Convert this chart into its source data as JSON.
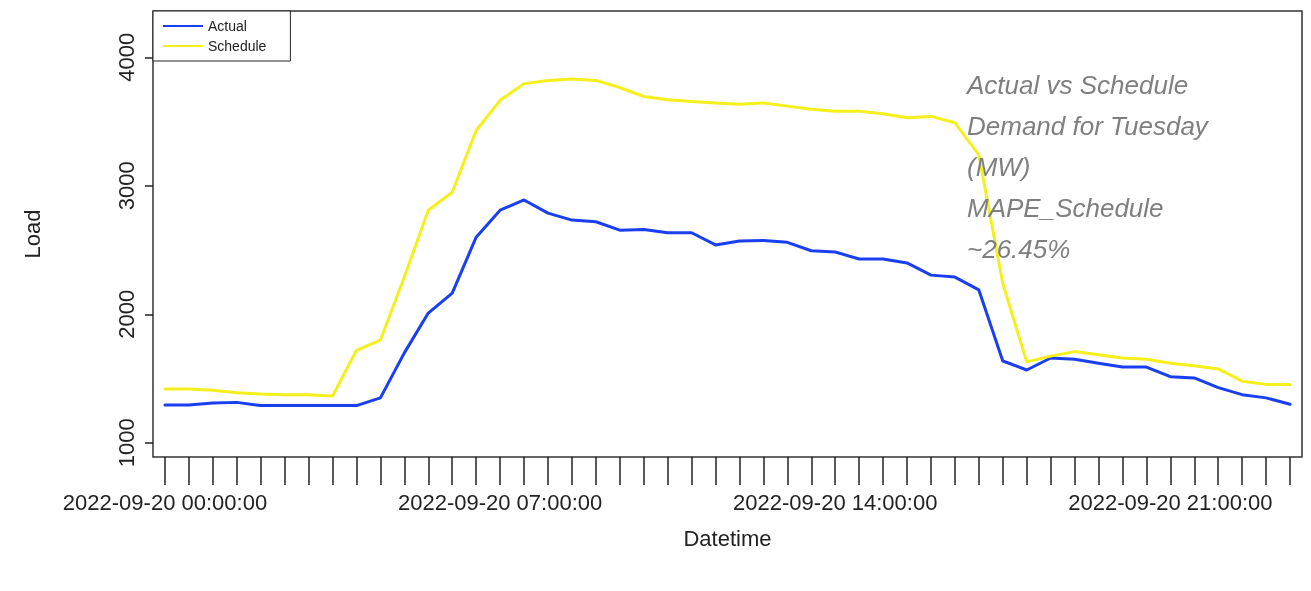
{
  "chart_data": {
    "type": "line",
    "xlabel": "Datetime",
    "ylabel": "Load",
    "annotations": [
      "Actual vs Schedule\nDemand for Tuesday\n(MW)\nMAPE_Schedule\n~26.45%"
    ],
    "categories": [
      "2022-09-20 00:00:00",
      null,
      null,
      null,
      null,
      null,
      null,
      null,
      null,
      null,
      null,
      null,
      null,
      null,
      "2022-09-20 07:00:00",
      null,
      null,
      null,
      null,
      null,
      null,
      null,
      null,
      null,
      null,
      null,
      null,
      null,
      "2022-09-20 14:00:00",
      null,
      null,
      null,
      null,
      null,
      null,
      null,
      null,
      null,
      null,
      null,
      null,
      null,
      "2022-09-20 21:00:00",
      null,
      null,
      null,
      null,
      null
    ],
    "series": [
      {
        "name": "Actual",
        "color": "#1a3ff0",
        "values": [
          1295,
          1295,
          1310,
          1315,
          1290,
          1290,
          1290,
          1290,
          1290,
          1350,
          1700,
          2010,
          2165,
          2600,
          2810,
          2890,
          2787,
          2733,
          2720,
          2655,
          2660,
          2635,
          2635,
          2540,
          2570,
          2575,
          2560,
          2495,
          2485,
          2430,
          2430,
          2400,
          2305,
          2290,
          2190,
          1637,
          1567,
          1660,
          1650,
          1620,
          1590,
          1590,
          1515,
          1505,
          1430,
          1375,
          1350,
          1300
        ]
      },
      {
        "name": "Schedule",
        "color": "#f5f01c",
        "values": [
          1420,
          1420,
          1410,
          1390,
          1380,
          1375,
          1375,
          1365,
          1720,
          1800,
          2290,
          2810,
          2950,
          3430,
          3665,
          3795,
          3820,
          3830,
          3820,
          3765,
          3695,
          3670,
          3655,
          3645,
          3635,
          3645,
          3620,
          3595,
          3580,
          3580,
          3560,
          3530,
          3540,
          3490,
          3240,
          2240,
          1630,
          1675,
          1710,
          1685,
          1660,
          1650,
          1620,
          1600,
          1575,
          1480,
          1455,
          1455
        ]
      }
    ],
    "ylim": [
      890,
      4360
    ],
    "yticks": [
      1000,
      2000,
      3000,
      4000
    ],
    "grid": false,
    "legend": "top left",
    "marker": "none",
    "line_style": "solid"
  }
}
